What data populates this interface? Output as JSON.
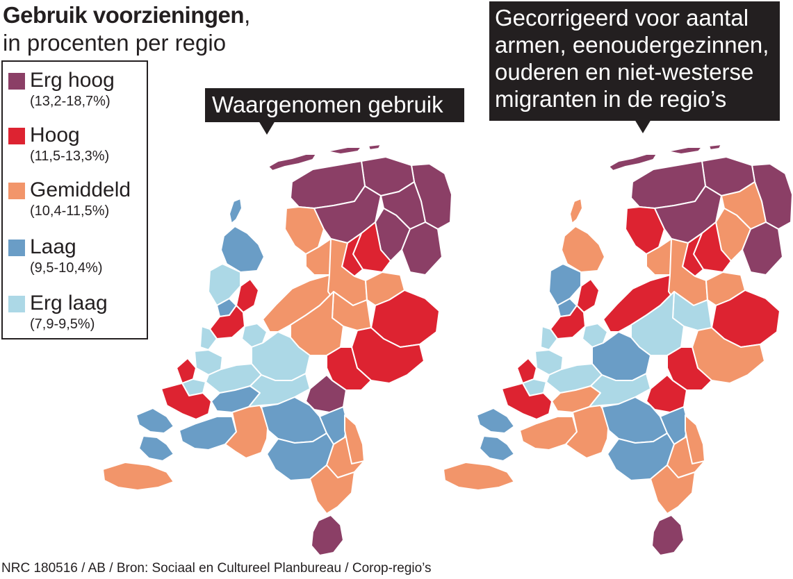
{
  "title": {
    "bold": "Gebruik voorzieningen",
    "comma": ",",
    "subtitle": "in procenten per regio"
  },
  "legend": {
    "items": [
      {
        "key": "erg_hoog",
        "label": "Erg hoog",
        "range": "(13,2-18,7%)",
        "color": "#8b3f66"
      },
      {
        "key": "hoog",
        "label": "Hoog",
        "range": "(11,5-13,3%)",
        "color": "#dd2331"
      },
      {
        "key": "gemiddeld",
        "label": "Gemiddeld",
        "range": "(10,4-11,5%)",
        "color": "#f2956a"
      },
      {
        "key": "laag",
        "label": "Laag",
        "range": "(9,5-10,4%)",
        "color": "#6a9dc6"
      },
      {
        "key": "erg_laag",
        "label": "Erg laag",
        "range": "(7,9-9,5%)",
        "color": "#acd8e6"
      }
    ]
  },
  "maps": {
    "left": {
      "label": "Waargenomen gebruik",
      "regions": {
        "groningen_oost": "erg_hoog",
        "groningen_west": "erg_hoog",
        "groningen_centr": "erg_hoog",
        "friesland_n": "erg_hoog",
        "friesland_zw": "gemiddeld",
        "friesland_zo": "erg_hoog",
        "drenthe_n": "erg_hoog",
        "drenthe_zo": "erg_hoog",
        "drenthe_zw": "hoog",
        "drenthe_w": "hoog",
        "flevoland": "gemiddeld",
        "noordoostpolder": "gemiddeld",
        "kop_nh": "laag",
        "texel": "laag",
        "alkmaar": "erg_laag",
        "zaanstreek": "hoog",
        "ijmond": "laag",
        "amsterdam": "hoog",
        "haarlem": "erg_laag",
        "gooi": "erg_laag",
        "overijssel_n": "gemiddeld",
        "zwolle": "gemiddeld",
        "twente": "hoog",
        "achterhoek": "hoog",
        "veluwe": "gemiddeld",
        "apeldoorn": "gemiddeld",
        "arnhem": "hoog",
        "utrecht": "erg_laag",
        "leiden": "erg_laag",
        "denhaag": "hoog",
        "delft": "erg_laag",
        "rotterdam": "hoog",
        "oost_zh": "erg_laag",
        "dordrecht": "laag",
        "rivierengebied": "erg_laag",
        "nijmegen": "erg_hoog",
        "zeeland_n": "laag",
        "zeeland_zv": "gemiddeld",
        "brabant_w": "laag",
        "breda": "gemiddeld",
        "tilburg": "laag",
        "denbosch": "laag",
        "eindhoven": "laag",
        "helmond": "gemiddeld",
        "limburg_n": "gemiddeld",
        "limburg_m": "gemiddeld",
        "limburg_z": "erg_hoog",
        "wadden": "erg_hoog"
      }
    },
    "right": {
      "label_lines": [
        "Gecorrigeerd voor aantal",
        "armen, eenoudergezinnen,",
        "ouderen en niet-westerse",
        "migranten in de regio’s"
      ],
      "regions": {
        "groningen_oost": "erg_hoog",
        "groningen_west": "erg_hoog",
        "groningen_centr": "gemiddeld",
        "friesland_n": "erg_hoog",
        "friesland_zw": "hoog",
        "friesland_zo": "erg_hoog",
        "drenthe_n": "gemiddeld",
        "drenthe_zo": "erg_hoog",
        "drenthe_zw": "hoog",
        "drenthe_w": "hoog",
        "flevoland": "hoog",
        "noordoostpolder": "gemiddeld",
        "kop_nh": "gemiddeld",
        "texel": "gemiddeld",
        "alkmaar": "laag",
        "zaanstreek": "hoog",
        "ijmond": "laag",
        "amsterdam": "hoog",
        "haarlem": "erg_laag",
        "gooi": "erg_laag",
        "overijssel_n": "gemiddeld",
        "zwolle": "gemiddeld",
        "twente": "hoog",
        "achterhoek": "gemiddeld",
        "veluwe": "erg_laag",
        "apeldoorn": "erg_laag",
        "arnhem": "hoog",
        "utrecht": "laag",
        "leiden": "erg_laag",
        "denhaag": "hoog",
        "delft": "erg_laag",
        "rotterdam": "hoog",
        "oost_zh": "erg_laag",
        "dordrecht": "gemiddeld",
        "rivierengebied": "erg_laag",
        "nijmegen": "hoog",
        "zeeland_n": "laag",
        "zeeland_zv": "gemiddeld",
        "brabant_w": "gemiddeld",
        "breda": "gemiddeld",
        "tilburg": "laag",
        "denbosch": "laag",
        "eindhoven": "laag",
        "helmond": "gemiddeld",
        "limburg_n": "gemiddeld",
        "limburg_m": "gemiddeld",
        "limburg_z": "erg_hoog",
        "wadden": "erg_hoog"
      }
    }
  },
  "source": "NRC 180516 / AB / Bron: Sociaal en Cultureel Planbureau / Corop-regio’s"
}
